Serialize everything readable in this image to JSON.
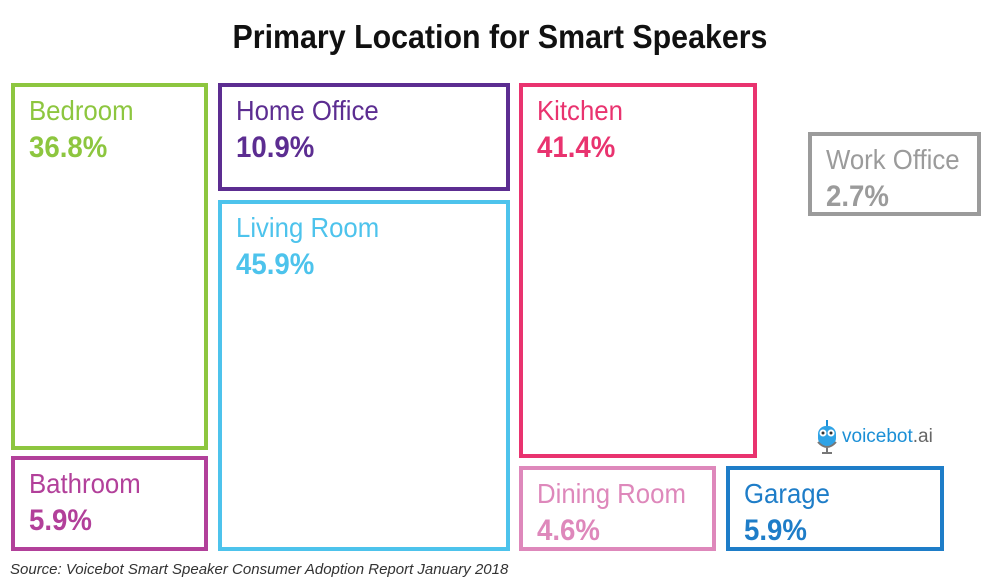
{
  "chart_data": {
    "type": "treemap",
    "title": "Primary Location for Smart Speakers",
    "unit": "%",
    "items": [
      {
        "label": "Bedroom",
        "value": 36.8,
        "display": "36.8%",
        "color": "#8dc63f"
      },
      {
        "label": "Home Office",
        "value": 10.9,
        "display": "10.9%",
        "color": "#5c2d91"
      },
      {
        "label": "Living Room",
        "value": 45.9,
        "display": "45.9%",
        "color": "#4dc3ec"
      },
      {
        "label": "Kitchen",
        "value": 41.4,
        "display": "41.4%",
        "color": "#e9336f"
      },
      {
        "label": "Work Office",
        "value": 2.7,
        "display": "2.7%",
        "color": "#9b9b9b"
      },
      {
        "label": "Bathroom",
        "value": 5.9,
        "display": "5.9%",
        "color": "#b2409a"
      },
      {
        "label": "Dining Room",
        "value": 4.6,
        "display": "4.6%",
        "color": "#de88bb"
      },
      {
        "label": "Garage",
        "value": 5.9,
        "display": "5.9%",
        "color": "#1e7dc8"
      }
    ],
    "source": "Source: Voicebot Smart Speaker Consumer Adoption Report January 2018"
  },
  "logo": {
    "text": "voicebot",
    "suffix": ".ai",
    "icon": "robot-microphone-icon"
  }
}
